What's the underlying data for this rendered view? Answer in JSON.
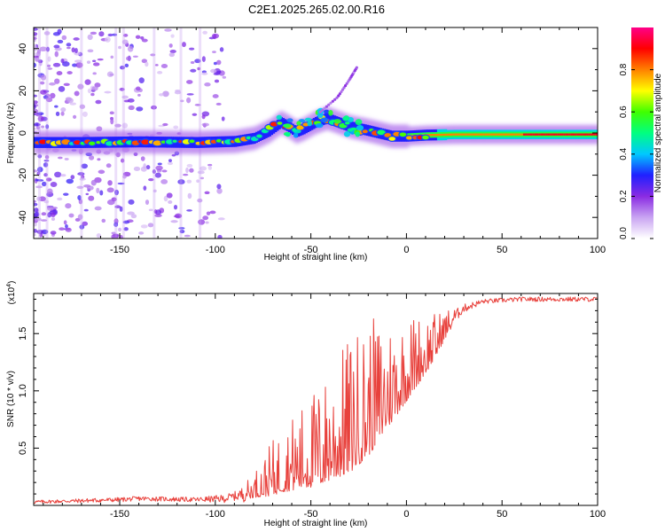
{
  "title": "C2E1.2025.265.02.00.R16",
  "chart_data": [
    {
      "type": "heatmap",
      "title": "C2E1.2025.265.02.00.R16",
      "xlabel": "Height of straight line (km)",
      "ylabel": "Frequency (Hz)",
      "xlim": [
        -195,
        100
      ],
      "ylim": [
        -50,
        50
      ],
      "x_ticks": [
        -150,
        -100,
        -50,
        0,
        50,
        100
      ],
      "x_tick_labels": [
        "-150",
        "-100",
        "-50",
        "0",
        "50",
        "100"
      ],
      "y_ticks": [
        -40,
        -20,
        0,
        20,
        40
      ],
      "y_tick_labels": [
        "-40",
        "-20",
        "0",
        "20",
        "40"
      ],
      "colorbar": {
        "label": "Normalized spectral amplitude",
        "range": [
          0,
          1
        ],
        "ticks": [
          0.0,
          0.2,
          0.4,
          0.6,
          0.8
        ],
        "tick_labels": [
          "0.0",
          "0.2",
          "0.4",
          "0.6",
          "0.8"
        ],
        "colors": [
          "#ffffff",
          "#c9a4f2",
          "#8a2be2",
          "#2020ff",
          "#00c8ff",
          "#00ff80",
          "#40ff00",
          "#ffff00",
          "#ff8000",
          "#ff0000",
          "#ff0088"
        ]
      },
      "ridge_line": {
        "x": [
          -195,
          -170,
          -140,
          -110,
          -90,
          -80,
          -72,
          -66,
          -62,
          -58,
          -54,
          -48,
          -42,
          -36,
          -30,
          -22,
          -15,
          -8,
          0,
          10,
          25,
          50,
          75,
          100
        ],
        "y": [
          -4.5,
          -4.5,
          -4.2,
          -4.5,
          -4.0,
          -2.5,
          1.0,
          5.0,
          3.0,
          0.5,
          2.0,
          5.0,
          7.0,
          5.0,
          3.0,
          1.5,
          0.0,
          -1.5,
          -1.5,
          -1.0,
          -0.7,
          -0.7,
          -0.7,
          -0.7
        ]
      },
      "features": [
        {
          "type": "streak",
          "label": "upper harmonic",
          "x": [
            -45,
            -36,
            -30,
            -26
          ],
          "y": [
            10,
            17,
            25,
            31
          ]
        }
      ]
    },
    {
      "type": "line",
      "xlabel": "Height of straight line (km)",
      "ylabel": "SNR (10 * v/v)",
      "y_multiplier_label": "(x10",
      "y_multiplier_exp": "4",
      "y_multiplier_close": ")",
      "xlim": [
        -195,
        100
      ],
      "ylim": [
        0,
        1.85
      ],
      "x_ticks": [
        -150,
        -100,
        -50,
        0,
        50,
        100
      ],
      "x_tick_labels": [
        "-150",
        "-100",
        "-50",
        "0",
        "50",
        "100"
      ],
      "y_ticks": [
        0.5,
        1.0,
        1.5
      ],
      "y_tick_labels": [
        "0.5",
        "1.0",
        "1.5"
      ],
      "series": [
        {
          "name": "SNR",
          "color": "#e8413c",
          "envelope_x": [
            -195,
            -150,
            -140,
            -110,
            -95,
            -85,
            -75,
            -65,
            -55,
            -45,
            -35,
            -25,
            -15,
            -5,
            5,
            15,
            22,
            30,
            40,
            60,
            80,
            100
          ],
          "envelope_y": [
            0.03,
            0.05,
            0.06,
            0.05,
            0.06,
            0.1,
            0.22,
            0.35,
            0.45,
            0.55,
            0.7,
            0.85,
            1.0,
            1.15,
            1.3,
            1.45,
            1.6,
            1.72,
            1.78,
            1.8,
            1.8,
            1.8
          ],
          "noise_x": [
            -195,
            -150,
            -110,
            -90,
            -80,
            -70,
            -60,
            -50,
            -40,
            -30,
            -20,
            -10,
            0,
            10,
            20,
            28,
            40,
            100
          ],
          "noise_amp": [
            0.015,
            0.02,
            0.02,
            0.04,
            0.1,
            0.22,
            0.3,
            0.38,
            0.45,
            0.55,
            0.55,
            0.45,
            0.35,
            0.25,
            0.12,
            0.04,
            0.02,
            0.02
          ]
        }
      ]
    }
  ]
}
